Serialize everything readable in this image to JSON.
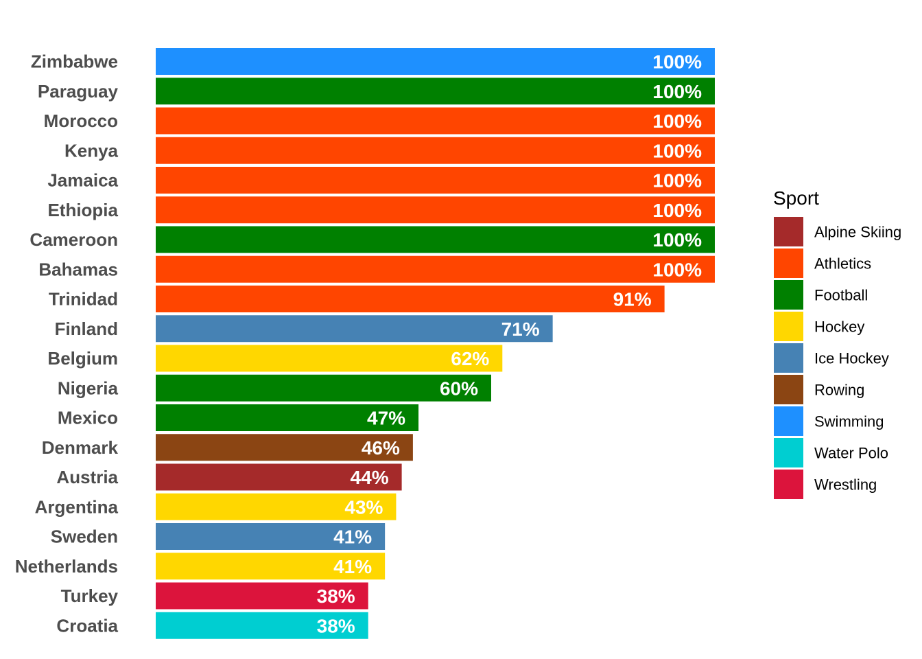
{
  "chart_data": {
    "type": "bar",
    "orientation": "horizontal",
    "categories": [
      "Zimbabwe",
      "Paraguay",
      "Morocco",
      "Kenya",
      "Jamaica",
      "Ethiopia",
      "Cameroon",
      "Bahamas",
      "Trinidad",
      "Finland",
      "Belgium",
      "Nigeria",
      "Mexico",
      "Denmark",
      "Austria",
      "Argentina",
      "Sweden",
      "Netherlands",
      "Turkey",
      "Croatia"
    ],
    "values": [
      100,
      100,
      100,
      100,
      100,
      100,
      100,
      100,
      91,
      71,
      62,
      60,
      47,
      46,
      44,
      43,
      41,
      41,
      38,
      38
    ],
    "value_labels": [
      "100%",
      "100%",
      "100%",
      "100%",
      "100%",
      "100%",
      "100%",
      "100%",
      "91%",
      "71%",
      "62%",
      "60%",
      "47%",
      "46%",
      "44%",
      "43%",
      "41%",
      "41%",
      "38%",
      "38%"
    ],
    "sports": [
      "Swimming",
      "Football",
      "Athletics",
      "Athletics",
      "Athletics",
      "Athletics",
      "Football",
      "Athletics",
      "Athletics",
      "Ice Hockey",
      "Hockey",
      "Football",
      "Football",
      "Rowing",
      "Alpine Skiing",
      "Hockey",
      "Ice Hockey",
      "Hockey",
      "Wrestling",
      "Water Polo"
    ],
    "xlim": [
      0,
      100
    ],
    "grid": false,
    "legend": {
      "title": "Sport",
      "position": "right",
      "entries": [
        {
          "name": "Alpine Skiing",
          "color": "#A52A2A"
        },
        {
          "name": "Athletics",
          "color": "#FF4500"
        },
        {
          "name": "Football",
          "color": "#008000"
        },
        {
          "name": "Hockey",
          "color": "#FFD700"
        },
        {
          "name": "Ice Hockey",
          "color": "#4682B4"
        },
        {
          "name": "Rowing",
          "color": "#8B4513"
        },
        {
          "name": "Swimming",
          "color": "#1E90FF"
        },
        {
          "name": "Water Polo",
          "color": "#00CED1"
        },
        {
          "name": "Wrestling",
          "color": "#DC143C"
        }
      ]
    }
  }
}
